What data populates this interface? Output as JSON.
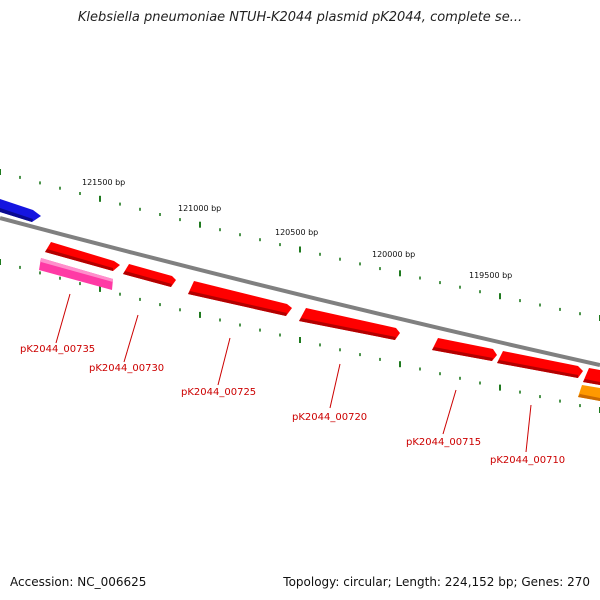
{
  "title": "Klebsiella pneumoniae NTUH-K2044 plasmid pK2044, complete se...",
  "footer": {
    "accession": "Accession: NC_006625",
    "stats": "Topology: circular; Length: 224,152 bp; Genes: 270"
  },
  "position_labels": [
    "121500 bp",
    "121000 bp",
    "120500 bp",
    "120000 bp",
    "119500 bp"
  ],
  "genes": [
    {
      "label": "pK2044_00735"
    },
    {
      "label": "pK2044_00730"
    },
    {
      "label": "pK2044_00725"
    },
    {
      "label": "pK2044_00720"
    },
    {
      "label": "pK2044_00715"
    },
    {
      "label": "pK2044_00710"
    }
  ],
  "colors": {
    "backbone": "#808080",
    "tick": "#1f7a1f",
    "gene_fill": "#ff0000",
    "gene_dark": "#b30000",
    "gene_label": "#cc0000",
    "feature_blue": "#1515e0",
    "feature_pink": "#ff3aa5",
    "feature_orange": "#ff9900"
  }
}
